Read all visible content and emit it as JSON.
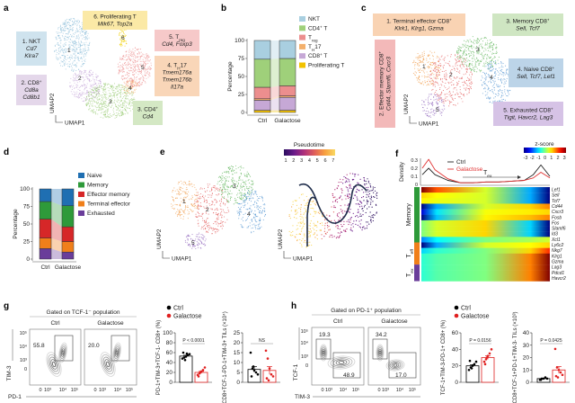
{
  "panel_labels": {
    "a": "a",
    "b": "b",
    "c": "c",
    "d": "d",
    "e": "e",
    "f": "f",
    "g": "g",
    "h": "h"
  },
  "umap": {
    "x": "UMAP1",
    "y": "UMAP2"
  },
  "panel_a": {
    "clusters": [
      "1",
      "2",
      "3",
      "4",
      "5",
      "6"
    ],
    "boxes": [
      {
        "color": "#cfe3ee",
        "lines": [
          {
            "t": "1. NKT"
          },
          {
            "t": "Cd7",
            "i": true
          },
          {
            "t": "Klra7",
            "i": true
          }
        ]
      },
      {
        "color": "#e4d7ea",
        "lines": [
          {
            "t": "2. CD8",
            "sup": "+"
          },
          {
            "t": "Cd8a",
            "i": true
          },
          {
            "t": "Cd8b1",
            "i": true
          }
        ]
      },
      {
        "color": "#fbe9a6",
        "lines": [
          {
            "t": "6. Proliferating  T"
          },
          {
            "t": "Mik67, Top2a",
            "i": true
          }
        ]
      },
      {
        "color": "#f6c9c9",
        "lines": [
          {
            "t": "5. T",
            "sub": "reg"
          },
          {
            "t": "Cd4, Foxp3",
            "i": true
          }
        ]
      },
      {
        "color": "#f9d6b8",
        "lines": [
          {
            "t": "4. T",
            "sub": "H",
            "t2": "17"
          },
          {
            "t": "Tmem176a",
            "i": true
          },
          {
            "t": "Tmem176b",
            "i": true
          },
          {
            "t": "Il17a",
            "i": true
          }
        ]
      },
      {
        "color": "#d4e8c4",
        "lines": [
          {
            "t": "3. CD4",
            "sup": "+"
          },
          {
            "t": "Cd4",
            "i": true
          }
        ]
      }
    ]
  },
  "panel_c": {
    "clusters": [
      "1",
      "2",
      "3",
      "4",
      "5"
    ],
    "boxes": [
      {
        "color": "#f9d3b3",
        "lines": [
          {
            "t": "1. Terminal effector CD8",
            "sup": "+"
          },
          {
            "t": "Klrk1, Klrg1, Gzma",
            "i": true
          }
        ]
      },
      {
        "color": "#f3b9b9",
        "lines": [
          {
            "t": "2. Effector memory CD8",
            "sup": "+"
          },
          {
            "t": "Cd44, Slamf6, Cxcr3",
            "i": true
          }
        ]
      },
      {
        "color": "#cfe6c2",
        "lines": [
          {
            "t": "3. Memory CD8",
            "sup": "+"
          },
          {
            "t": "Sell, Tcf7",
            "i": true
          }
        ]
      },
      {
        "color": "#bcd4e8",
        "lines": [
          {
            "t": "4. Naive CD8",
            "sup": "+"
          },
          {
            "t": "Sell, Tcf7, Lef1",
            "i": true
          }
        ]
      },
      {
        "color": "#d6c3e6",
        "lines": [
          {
            "t": "5. Exhausted CD8",
            "sup": "+"
          },
          {
            "t": "Tigit, Havcr2, Lag3",
            "i": true
          }
        ]
      }
    ]
  },
  "panel_e": {
    "clusters": [
      "1",
      "2",
      "3",
      "4",
      "5"
    ],
    "pseudotime_title": "Pseudotime",
    "pseudotime_ticks": [
      "1",
      "2",
      "3",
      "4",
      "5",
      "6",
      "7"
    ],
    "pseudotime_colors": [
      "#2b0d5e",
      "#6a1b8a",
      "#b0317a",
      "#e0605a",
      "#f8a040",
      "#f9d860"
    ]
  },
  "chart_data": [
    {
      "id": "b",
      "type": "bar",
      "stacked": true,
      "categories": [
        "Ctrl",
        "Galactose"
      ],
      "ylabel": "Percentage",
      "ylim": [
        0,
        100
      ],
      "yticks": [
        "0",
        "25",
        "50",
        "75",
        "100"
      ],
      "legend": "right",
      "series": [
        {
          "name": "Proliferating T",
          "legend": {
            "t": "Proliferating T"
          },
          "color": "#f2c200",
          "values": [
            3,
            3
          ]
        },
        {
          "name": "CD8+ T",
          "legend": {
            "t": "CD8",
            "sup": "+",
            "t2": " T"
          },
          "color": "#c6a8d6",
          "values": [
            14,
            18
          ]
        },
        {
          "name": "TH17",
          "legend": {
            "t": "T",
            "sub": "H",
            "t2": "17"
          },
          "color": "#f4b06c",
          "values": [
            2,
            2
          ]
        },
        {
          "name": "Treg",
          "legend": {
            "t": "T",
            "sub": "reg"
          },
          "color": "#ec8e8e",
          "values": [
            16,
            14
          ]
        },
        {
          "name": "CD4+ T",
          "legend": {
            "t": "CD4",
            "sup": "+",
            "t2": " T"
          },
          "color": "#9fd07a",
          "values": [
            39,
            38
          ]
        },
        {
          "name": "NKT",
          "legend": {
            "t": "NKT"
          },
          "color": "#a9cfe0",
          "values": [
            26,
            25
          ]
        }
      ]
    },
    {
      "id": "d",
      "type": "bar",
      "stacked": true,
      "categories": [
        "Ctrl",
        "Galactose"
      ],
      "ylabel": "Percentage",
      "ylim": [
        0,
        100
      ],
      "yticks": [
        "0",
        "25",
        "50",
        "75",
        "100"
      ],
      "legend": "right",
      "series": [
        {
          "name": "Exhausted",
          "legend": {
            "t": "Exhausted"
          },
          "color": "#6a3d9a",
          "values": [
            15,
            10
          ]
        },
        {
          "name": "Terminal effector",
          "legend": {
            "t": "Terminal effector"
          },
          "color": "#f07f1a",
          "values": [
            15,
            15
          ]
        },
        {
          "name": "Effector memory",
          "legend": {
            "t": "Effector memory"
          },
          "color": "#d62728",
          "values": [
            27,
            21
          ]
        },
        {
          "name": "Memory",
          "legend": {
            "t": "Memory"
          },
          "color": "#2e9a3a",
          "values": [
            25,
            30
          ]
        },
        {
          "name": "Naive",
          "legend": {
            "t": "Naive"
          },
          "color": "#1f6fb2",
          "values": [
            18,
            24
          ]
        }
      ]
    },
    {
      "id": "f-density",
      "type": "line",
      "ylabel": "Density",
      "ylim": [
        0,
        0.3
      ],
      "yticks": [
        "0",
        "0.1",
        "0.2",
        "0.3"
      ],
      "annotation": {
        "t": "T",
        "sub": "ex"
      },
      "x": [
        0,
        0.05,
        0.1,
        0.2,
        0.3,
        0.4,
        0.5,
        0.6,
        0.7,
        0.8,
        0.87,
        0.93,
        1.0
      ],
      "series": [
        {
          "name": "Ctrl",
          "color": "#222222",
          "values": [
            0.12,
            0.2,
            0.12,
            0.05,
            0.02,
            0.02,
            0.03,
            0.03,
            0.04,
            0.05,
            0.12,
            0.24,
            0.1
          ]
        },
        {
          "name": "Galactose",
          "color": "#e03030",
          "values": [
            0.2,
            0.31,
            0.18,
            0.07,
            0.02,
            0.02,
            0.03,
            0.03,
            0.04,
            0.05,
            0.08,
            0.15,
            0.08
          ]
        }
      ]
    },
    {
      "id": "f-heatmap",
      "type": "heatmap",
      "colorbar_title": "z-score",
      "colorbar_ticks": [
        "-3",
        "-2",
        "-1",
        "0",
        "1",
        "2",
        "3"
      ],
      "groups": [
        {
          "label": {
            "t": "Memory"
          },
          "color": "#2e9a3a",
          "rows": 10
        },
        {
          "label": {
            "t": "T",
            "sub": "eff"
          },
          "color": "#f07f1a",
          "rows": 4
        },
        {
          "label": {
            "t": "T",
            "sub": "ex"
          },
          "color": "#6a3d9a",
          "rows": 3
        }
      ],
      "rows": [
        {
          "gene": "Lef1",
          "z": [
            3,
            0.5,
            -3
          ]
        },
        {
          "gene": "Sell",
          "z": [
            1,
            0.5,
            -3
          ]
        },
        {
          "gene": "Tcf7",
          "z": [
            0.8,
            0.5,
            -3
          ]
        },
        {
          "gene": "Cd44",
          "z": [
            -3,
            0.5,
            1.5
          ]
        },
        {
          "gene": "Cxcr3",
          "z": [
            -2.5,
            0.7,
            1
          ]
        },
        {
          "gene": "Fosb",
          "z": [
            -3,
            0.8,
            1.5
          ]
        },
        {
          "gene": "Fos",
          "z": [
            0,
            1,
            -3
          ]
        },
        {
          "gene": "Slamf6",
          "z": [
            0,
            1,
            -3
          ]
        },
        {
          "gene": "Id3",
          "z": [
            0,
            1,
            -3
          ]
        },
        {
          "gene": "Xcl1",
          "z": [
            -1.5,
            0,
            0.5
          ]
        },
        {
          "gene": "Ly6c2",
          "z": [
            -3,
            0.5,
            1
          ]
        },
        {
          "gene": "Nkg7",
          "z": [
            -1,
            0,
            2
          ]
        },
        {
          "gene": "Klrg1",
          "z": [
            -0.5,
            0,
            3
          ]
        },
        {
          "gene": "Gzma",
          "z": [
            -0.5,
            0,
            3
          ]
        },
        {
          "gene": "Lag3",
          "z": [
            -0.5,
            0,
            3
          ]
        },
        {
          "gene": "Pdcd1",
          "z": [
            -0.5,
            0,
            3
          ]
        },
        {
          "gene": "Havcr2",
          "z": [
            -0.5,
            0,
            3
          ]
        }
      ]
    },
    {
      "id": "g-bar1",
      "type": "bar",
      "ylabel": [
        {
          "t": "PD-1",
          "sup": "+",
          "t2": "TIM-3"
        },
        {
          "t": "CD8",
          "sup": "+",
          "t2": " (%)"
        }
      ],
      "ylabel_full": "PD-1+TIM-3+TCF-1- CD8+ (%)",
      "ylim": [
        0,
        100
      ],
      "yticks": [
        "0",
        "20",
        "40",
        "60",
        "80",
        "100"
      ],
      "pvalue": "P < 0.0001",
      "categories": [
        "Ctrl",
        "Galactose"
      ],
      "means": [
        53,
        20
      ],
      "points": [
        [
          48,
          50,
          52,
          55,
          57,
          60,
          45,
          58
        ],
        [
          15,
          18,
          22,
          25,
          30,
          12,
          20
        ]
      ]
    },
    {
      "id": "g-bar2",
      "type": "bar",
      "ylabel_full": "CD8+TCF-1-PD-1+TIM-3+ TILs (×10⁴)",
      "ylim": [
        0,
        25
      ],
      "yticks": [
        "0",
        "5",
        "10",
        "15",
        "20",
        "25"
      ],
      "pvalue": "NS",
      "categories": [
        "Ctrl",
        "Galactose"
      ],
      "means": [
        6.5,
        6
      ],
      "points": [
        [
          15,
          7,
          6,
          5,
          4,
          3,
          8
        ],
        [
          16,
          12,
          7,
          4,
          3,
          2,
          1
        ]
      ]
    },
    {
      "id": "h-bar1",
      "type": "bar",
      "ylabel_full": "TCF-1+TIM-3-PD-1+ CD8+ (%)",
      "ylim": [
        0,
        60
      ],
      "yticks": [
        "0",
        "20",
        "40",
        "60"
      ],
      "pvalue": "P = 0.0156",
      "categories": [
        "Ctrl",
        "Galactose"
      ],
      "means": [
        20,
        30
      ],
      "points": [
        [
          15,
          18,
          20,
          22,
          25,
          26,
          17
        ],
        [
          25,
          28,
          32,
          35,
          40,
          22,
          30
        ]
      ]
    },
    {
      "id": "h-bar2",
      "type": "bar",
      "ylabel_full": "CD8+TCF-1+PD-1+TIM-3- TILs (×10³)",
      "ylim": [
        0,
        40
      ],
      "yticks": [
        "0",
        "10",
        "20",
        "30",
        "40"
      ],
      "pvalue": "P = 0.0425",
      "categories": [
        "Ctrl",
        "Galactose"
      ],
      "means": [
        3,
        10
      ],
      "points": [
        [
          2,
          3,
          3,
          4,
          3,
          2
        ],
        [
          27,
          12,
          10,
          8,
          6,
          5,
          4
        ]
      ]
    }
  ],
  "legend_groups": [
    {
      "label": "Ctrl",
      "color": "#000000"
    },
    {
      "label": "Galactose",
      "color": "#e02020"
    }
  ],
  "panel_g": {
    "title": "Gated on TCF-1⁻ population",
    "columns": [
      "Ctrl",
      "Galactose"
    ],
    "gates": [
      "55.8",
      "20.0"
    ],
    "y_axis": "TIM-3",
    "x_axis": "PD-1",
    "yticks": [
      "10⁵",
      "10⁴",
      "10³",
      "0"
    ],
    "xticks": [
      "0",
      "10³",
      "10⁴",
      "10⁵"
    ]
  },
  "panel_h": {
    "title": "Gated on PD-1⁺ population",
    "columns": [
      "Ctrl",
      "Galactose"
    ],
    "gates": [
      [
        "19.3",
        "48.9"
      ],
      [
        "34.2",
        "17.0"
      ]
    ],
    "y_axis": "TCF-1",
    "x_axis": "TIM-3",
    "yticks": [
      "10⁵",
      "10⁴",
      "10³",
      "0"
    ],
    "xticks": [
      "0",
      "10³",
      "10⁴",
      "10⁵"
    ]
  }
}
